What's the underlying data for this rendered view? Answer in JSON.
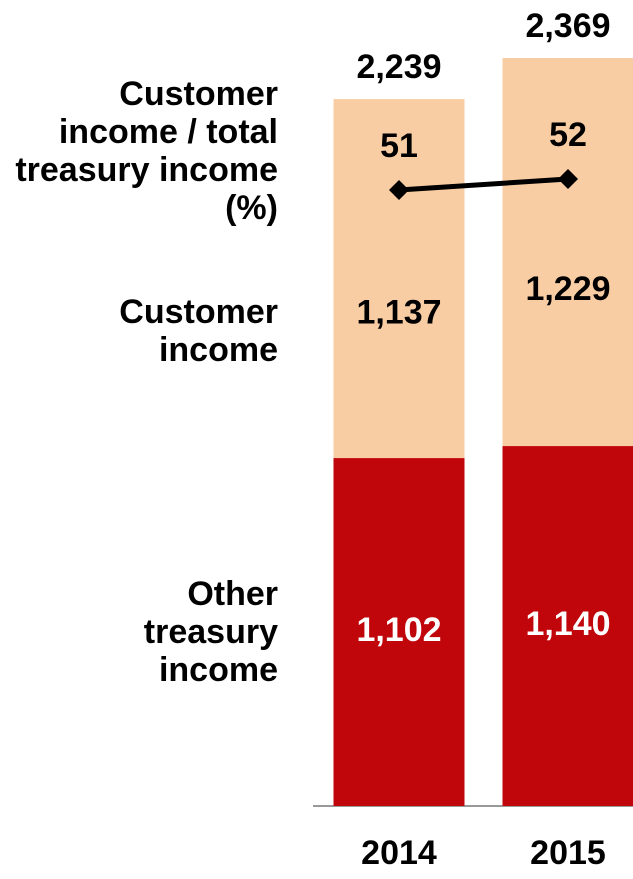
{
  "chart_data": {
    "type": "bar",
    "stacked": true,
    "categories": [
      "2014",
      "2015"
    ],
    "series": [
      {
        "name": "Other treasury income",
        "color": "#c0050b",
        "label_color": "#ffffff",
        "values": [
          1102,
          1140
        ],
        "value_labels": [
          "1,102",
          "1,140"
        ]
      },
      {
        "name": "Customer income",
        "color": "#f9cda4",
        "label_color": "#000000",
        "values": [
          1137,
          1229
        ],
        "value_labels": [
          "1,137",
          "1,229"
        ]
      },
      {
        "name": "Customer income / total treasury income (%)",
        "type": "line",
        "axis": "y2",
        "color": "#000000",
        "values": [
          51,
          52
        ]
      }
    ],
    "totals": [
      2239,
      2369
    ],
    "total_labels": [
      "2,239",
      "2,369"
    ],
    "ylim": [
      0,
      2369
    ],
    "y2lim": [
      -5,
      63
    ]
  }
}
